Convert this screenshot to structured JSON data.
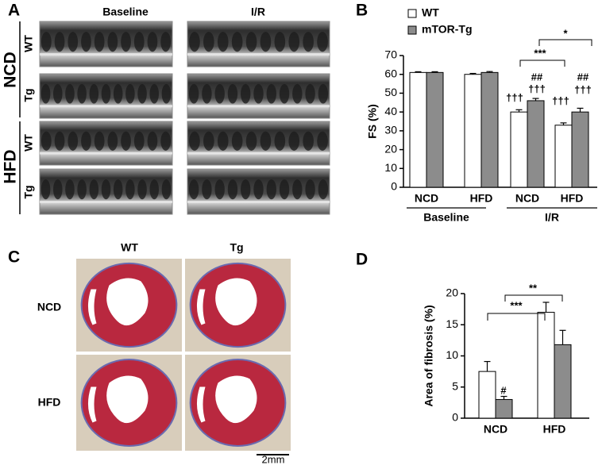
{
  "panels": [
    {
      "letter": "A",
      "columns": [
        "Baseline",
        "I/R"
      ],
      "groups": [
        "NCD",
        "HFD"
      ],
      "rows": [
        "WT",
        "Tg",
        "WT",
        "Tg"
      ]
    },
    {
      "letter": "B"
    },
    {
      "letter": "C",
      "columns": [
        "WT",
        "Tg"
      ],
      "rows": [
        "NCD",
        "HFD"
      ],
      "scale_bar": "2mm"
    },
    {
      "letter": "D"
    }
  ],
  "chart_data": [
    {
      "type": "bar",
      "ylabel": "FS (%)",
      "categories": [
        "NCD",
        "HFD",
        "NCD",
        "HFD"
      ],
      "groups": [
        "Baseline",
        "I/R"
      ],
      "ylim": [
        0,
        70
      ],
      "yticks": [
        0,
        10,
        20,
        30,
        40,
        50,
        60,
        70
      ],
      "legend": "top-left",
      "series": [
        {
          "name": "WT",
          "color": "#ffffff",
          "values": [
            61,
            60,
            40,
            33
          ],
          "errors": [
            0.4,
            0.5,
            1.2,
            1.2
          ]
        },
        {
          "name": "mTOR-Tg",
          "color": "#8c8c8c",
          "values": [
            61,
            61,
            46,
            40
          ],
          "errors": [
            0.4,
            0.5,
            1.2,
            2
          ]
        }
      ],
      "annotations": [
        "†††",
        "##",
        "†††",
        "†††",
        "##",
        "†††",
        "***",
        "*"
      ]
    },
    {
      "type": "bar",
      "ylabel": "Area of fibrosis (%)",
      "categories": [
        "NCD",
        "HFD"
      ],
      "ylim": [
        0,
        20
      ],
      "yticks": [
        0,
        5,
        10,
        15,
        20
      ],
      "series": [
        {
          "name": "WT",
          "color": "#ffffff",
          "values": [
            7.5,
            17
          ],
          "errors": [
            1.6,
            1.6
          ]
        },
        {
          "name": "mTOR-Tg",
          "color": "#8c8c8c",
          "values": [
            3,
            11.8
          ],
          "errors": [
            0.5,
            2.3
          ]
        }
      ],
      "annotations": [
        "#",
        "***",
        "**"
      ]
    }
  ]
}
